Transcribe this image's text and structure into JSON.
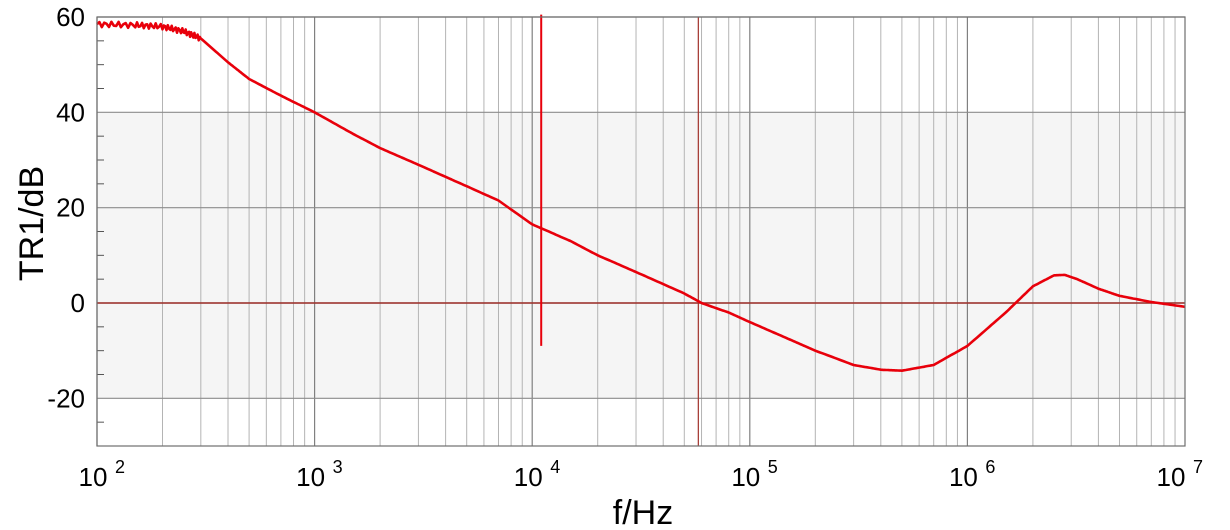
{
  "chart_data": {
    "type": "line",
    "title": "",
    "xlabel": "f/Hz",
    "ylabel": "TR1/dB",
    "xscale": "log",
    "xlim": [
      100,
      10000000
    ],
    "ylim": [
      -30,
      60
    ],
    "grid": true,
    "legend": "none",
    "x_ticks": [
      {
        "value": 100,
        "base": "10",
        "exp": "2"
      },
      {
        "value": 1000,
        "base": "10",
        "exp": "3"
      },
      {
        "value": 10000,
        "base": "10",
        "exp": "4"
      },
      {
        "value": 100000,
        "base": "10",
        "exp": "5"
      },
      {
        "value": 1000000,
        "base": "10",
        "exp": "6"
      },
      {
        "value": 10000000,
        "base": "10",
        "exp": "7"
      }
    ],
    "y_ticks": [
      {
        "value": 60,
        "label": "60"
      },
      {
        "value": 40,
        "label": "40"
      },
      {
        "value": 20,
        "label": "20"
      },
      {
        "value": 0,
        "label": "0"
      },
      {
        "value": -20,
        "label": "-20"
      }
    ],
    "shaded_band": [
      -20,
      40
    ],
    "reference_lines": {
      "horizontal_y": 0,
      "vertical_x": [
        11000,
        58000
      ],
      "marker_segment": {
        "x": 11000,
        "y_from": -9,
        "y_to": 60.5
      }
    },
    "series": [
      {
        "color": "#e8000b",
        "x": [
          100,
          150,
          200,
          250,
          300,
          400,
          500,
          700,
          1000,
          1500,
          2000,
          3000,
          5000,
          7000,
          10000,
          15000,
          20000,
          30000,
          50000,
          60000,
          80000,
          100000,
          150000,
          200000,
          300000,
          400000,
          500000,
          700000,
          1000000,
          1500000,
          2000000,
          2500000,
          2800000,
          3200000,
          4000000,
          5000000,
          7000000,
          10000000
        ],
        "y": [
          58.5,
          58.3,
          58,
          57,
          55.5,
          50.5,
          47,
          43.5,
          40,
          35.5,
          32.5,
          29,
          24.5,
          21.5,
          16.5,
          13,
          10,
          6.5,
          2,
          0,
          -2,
          -4,
          -7.5,
          -10,
          -13,
          -14,
          -14.2,
          -13,
          -9,
          -2,
          3.5,
          5.8,
          5.9,
          5,
          3,
          1.5,
          0.2,
          -0.8
        ]
      }
    ],
    "colors": {
      "curve": "#e8000b",
      "reference": "#a0302a",
      "grid": "#9b9b9b",
      "band": "#f5f5f5"
    }
  }
}
